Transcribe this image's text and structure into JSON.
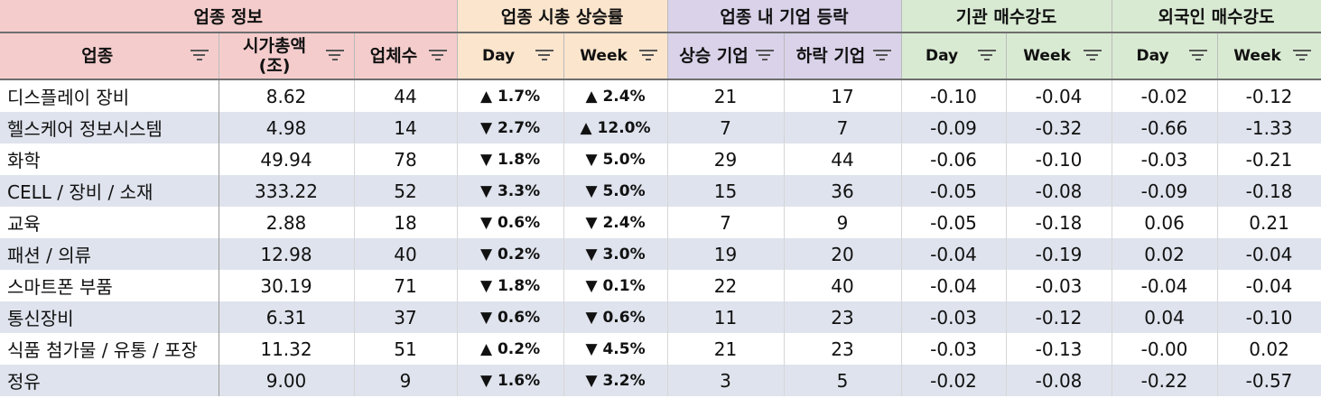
{
  "groups": [
    "업종 정보",
    "업종 시총 상승률",
    "업종 내 기업 등락",
    "기관 매수강도",
    "외국인 매수강도"
  ],
  "columns": [
    "업종",
    "시가총액\n(조)",
    "업체수",
    "Day",
    "Week",
    "상승 기업",
    "하락 기업",
    "Day",
    "Week",
    "Day",
    "Week"
  ],
  "icons": {
    "filter": "filter-icon",
    "up": "▲",
    "down": "▼"
  },
  "colors": {
    "up": "#ee1111",
    "down": "#1a1aee",
    "group_info": "#f4cccc",
    "group_cap": "#fce5cd",
    "group_firms": "#d9d2e9",
    "group_strength": "#d9ead3",
    "row_alt": "#dfe3ed"
  },
  "rows": [
    {
      "name": "디스플레이 장비",
      "cap": "8.62",
      "count": "44",
      "day": {
        "dir": "up",
        "v": "1.7%"
      },
      "week": {
        "dir": "up",
        "v": "2.4%"
      },
      "rise": "21",
      "fall": "17",
      "inst_day": "-0.10",
      "inst_week": "-0.04",
      "for_day": "-0.02",
      "for_week": "-0.12"
    },
    {
      "name": "헬스케어 정보시스템",
      "cap": "4.98",
      "count": "14",
      "day": {
        "dir": "down",
        "v": "2.7%"
      },
      "week": {
        "dir": "up",
        "v": "12.0%"
      },
      "rise": "7",
      "fall": "7",
      "inst_day": "-0.09",
      "inst_week": "-0.32",
      "for_day": "-0.66",
      "for_week": "-1.33"
    },
    {
      "name": "화학",
      "cap": "49.94",
      "count": "78",
      "day": {
        "dir": "down",
        "v": "1.8%"
      },
      "week": {
        "dir": "down",
        "v": "5.0%"
      },
      "rise": "29",
      "fall": "44",
      "inst_day": "-0.06",
      "inst_week": "-0.10",
      "for_day": "-0.03",
      "for_week": "-0.21"
    },
    {
      "name": "CELL / 장비 / 소재",
      "cap": "333.22",
      "count": "52",
      "day": {
        "dir": "down",
        "v": "3.3%"
      },
      "week": {
        "dir": "down",
        "v": "5.0%"
      },
      "rise": "15",
      "fall": "36",
      "inst_day": "-0.05",
      "inst_week": "-0.08",
      "for_day": "-0.09",
      "for_week": "-0.18"
    },
    {
      "name": "교육",
      "cap": "2.88",
      "count": "18",
      "day": {
        "dir": "down",
        "v": "0.6%"
      },
      "week": {
        "dir": "down",
        "v": "2.4%"
      },
      "rise": "7",
      "fall": "9",
      "inst_day": "-0.05",
      "inst_week": "-0.18",
      "for_day": "0.06",
      "for_week": "0.21"
    },
    {
      "name": "패션 / 의류",
      "cap": "12.98",
      "count": "40",
      "day": {
        "dir": "down",
        "v": "0.2%"
      },
      "week": {
        "dir": "down",
        "v": "3.0%"
      },
      "rise": "19",
      "fall": "20",
      "inst_day": "-0.04",
      "inst_week": "-0.19",
      "for_day": "0.02",
      "for_week": "-0.04"
    },
    {
      "name": "스마트폰 부품",
      "cap": "30.19",
      "count": "71",
      "day": {
        "dir": "down",
        "v": "1.8%"
      },
      "week": {
        "dir": "down",
        "v": "0.1%"
      },
      "rise": "22",
      "fall": "40",
      "inst_day": "-0.04",
      "inst_week": "-0.03",
      "for_day": "-0.04",
      "for_week": "-0.04"
    },
    {
      "name": "통신장비",
      "cap": "6.31",
      "count": "37",
      "day": {
        "dir": "down",
        "v": "0.6%"
      },
      "week": {
        "dir": "down",
        "v": "0.6%"
      },
      "rise": "11",
      "fall": "23",
      "inst_day": "-0.03",
      "inst_week": "-0.12",
      "for_day": "0.04",
      "for_week": "-0.10"
    },
    {
      "name": "식품 첨가물 / 유통 / 포장",
      "cap": "11.32",
      "count": "51",
      "day": {
        "dir": "up",
        "v": "0.2%"
      },
      "week": {
        "dir": "down",
        "v": "4.5%"
      },
      "rise": "21",
      "fall": "23",
      "inst_day": "-0.03",
      "inst_week": "-0.13",
      "for_day": "-0.00",
      "for_week": "0.02"
    },
    {
      "name": "정유",
      "cap": "9.00",
      "count": "9",
      "day": {
        "dir": "down",
        "v": "1.6%"
      },
      "week": {
        "dir": "down",
        "v": "3.2%"
      },
      "rise": "3",
      "fall": "5",
      "inst_day": "-0.02",
      "inst_week": "-0.08",
      "for_day": "-0.22",
      "for_week": "-0.57"
    }
  ]
}
